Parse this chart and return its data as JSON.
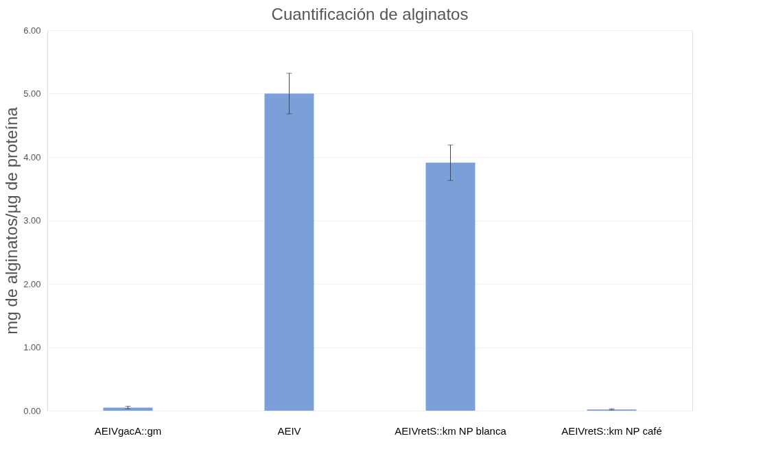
{
  "chart_data": {
    "type": "bar",
    "title": "Cuantificación de alginatos",
    "ylabel": "mg de alginatos/µg de proteína",
    "categories": [
      "AEIVgacA::gm",
      "AEIV",
      "AEIVretS::km NP blanca",
      "AEIVretS::km NP café"
    ],
    "series": [
      {
        "color": "#7a9fd9",
        "values": [
          0.05,
          5.0,
          3.91,
          0.02
        ],
        "errors": [
          0.02,
          [
            4.68,
            5.32
          ],
          [
            3.63,
            4.19
          ],
          0.01
        ]
      }
    ],
    "ylim": [
      0,
      6
    ],
    "yticks": [
      {
        "value": 0,
        "label": "0.00"
      },
      {
        "value": 1,
        "label": "1.00"
      },
      {
        "value": 2,
        "label": "2.00"
      },
      {
        "value": 3,
        "label": "3.00"
      },
      {
        "value": 4,
        "label": "4.00"
      },
      {
        "value": 5,
        "label": "5.00"
      },
      {
        "value": 6,
        "label": "6.00"
      }
    ],
    "grid": "y"
  }
}
